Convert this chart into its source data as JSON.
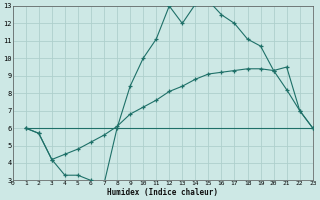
{
  "xlabel": "Humidex (Indice chaleur)",
  "bg_color": "#cde8e5",
  "grid_color": "#aed0cc",
  "line_color": "#1e7068",
  "xlim": [
    0,
    23
  ],
  "ylim": [
    3,
    13
  ],
  "xticks": [
    0,
    1,
    2,
    3,
    4,
    5,
    6,
    7,
    8,
    9,
    10,
    11,
    12,
    13,
    14,
    15,
    16,
    17,
    18,
    19,
    20,
    21,
    22,
    23
  ],
  "yticks": [
    3,
    4,
    5,
    6,
    7,
    8,
    9,
    10,
    11,
    12,
    13
  ],
  "line1_x": [
    1,
    2,
    3,
    4,
    5,
    6,
    7,
    8,
    9,
    10,
    11,
    12,
    13,
    14,
    15,
    16,
    17,
    18,
    19,
    20,
    21,
    22,
    23
  ],
  "line1_y": [
    6.0,
    5.7,
    4.2,
    3.3,
    3.3,
    3.0,
    2.8,
    6.0,
    8.4,
    10.0,
    11.1,
    13.0,
    12.0,
    13.1,
    13.3,
    12.5,
    12.0,
    11.1,
    10.7,
    9.3,
    9.5,
    7.0,
    6.0
  ],
  "line2_x": [
    1,
    2,
    3,
    4,
    5,
    6,
    7,
    8,
    9,
    10,
    11,
    12,
    13,
    14,
    15,
    16,
    17,
    18,
    19,
    20,
    21,
    22,
    23
  ],
  "line2_y": [
    6.0,
    5.7,
    4.2,
    4.5,
    4.8,
    5.2,
    5.6,
    6.1,
    6.8,
    7.2,
    7.6,
    8.1,
    8.4,
    8.8,
    9.1,
    9.2,
    9.3,
    9.4,
    9.4,
    9.3,
    8.2,
    7.0,
    6.0
  ],
  "line3_x": [
    1,
    23
  ],
  "line3_y": [
    6.0,
    6.0
  ]
}
